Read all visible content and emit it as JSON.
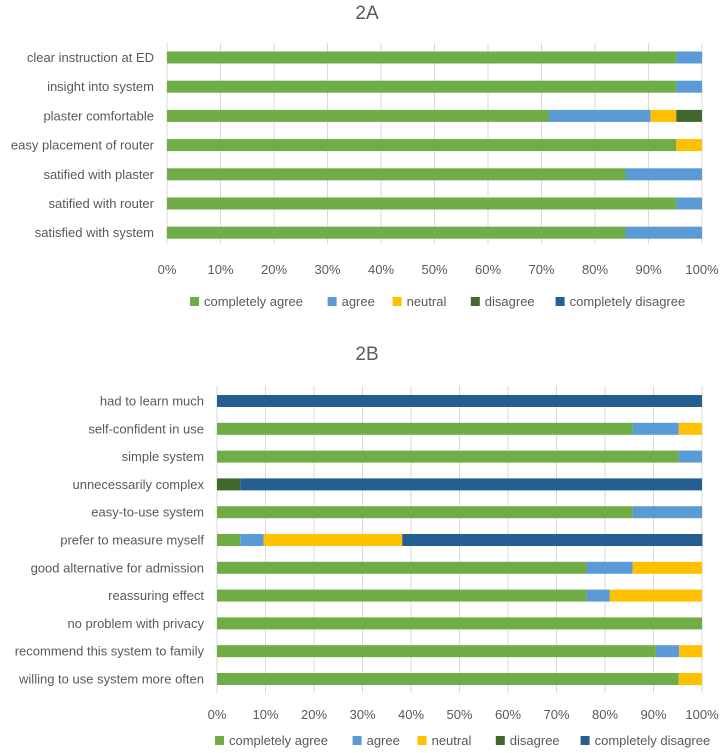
{
  "colors": {
    "completely_agree": "#70AD47",
    "agree": "#5B9BD5",
    "neutral": "#FFC000",
    "disagree": "#43682B",
    "completely_disagree": "#255E91",
    "gridline": "#D9D9D9",
    "text": "#595959"
  },
  "chart_data": [
    {
      "type": "bar",
      "orientation": "horizontal",
      "stacked": "percent",
      "title": "2A",
      "xlim": [
        0,
        100
      ],
      "xticks": [
        "0%",
        "10%",
        "20%",
        "30%",
        "40%",
        "50%",
        "60%",
        "70%",
        "80%",
        "90%",
        "100%"
      ],
      "categories": [
        "clear instruction at ED",
        "insight into system",
        "plaster comfortable",
        "easy placement of router",
        "satified with plaster",
        "satified with router",
        "satisfied with system"
      ],
      "series": [
        {
          "name": "completely agree",
          "values": [
            95.2,
            95.2,
            71.4,
            95.2,
            85.7,
            95.2,
            85.7
          ]
        },
        {
          "name": "agree",
          "values": [
            4.8,
            4.8,
            19.0,
            0,
            14.3,
            4.8,
            14.3
          ]
        },
        {
          "name": "neutral",
          "values": [
            0,
            0,
            4.8,
            4.8,
            0,
            0,
            0
          ]
        },
        {
          "name": "disagree",
          "values": [
            0,
            0,
            4.8,
            0,
            0,
            0,
            0
          ]
        },
        {
          "name": "completely disagree",
          "values": [
            0,
            0,
            0,
            0,
            0,
            0,
            0
          ]
        }
      ],
      "legend": "bottom"
    },
    {
      "type": "bar",
      "orientation": "horizontal",
      "stacked": "percent",
      "title": "2B",
      "xlim": [
        0,
        100
      ],
      "xticks": [
        "0%",
        "10%",
        "20%",
        "30%",
        "40%",
        "50%",
        "60%",
        "70%",
        "80%",
        "90%",
        "100%"
      ],
      "categories": [
        "had to learn much",
        "self-confident in use",
        "simple system",
        "unnecessarily complex",
        "easy-to-use system",
        "prefer to measure myself",
        "good alternative for admission",
        "reassuring effect",
        "no problem with privacy",
        "recommend this system to family",
        "willing to use system more often"
      ],
      "series": [
        {
          "name": "completely agree",
          "values": [
            0,
            85.7,
            95.2,
            0,
            85.7,
            4.8,
            76.2,
            76.2,
            100,
            90.5,
            95.2
          ]
        },
        {
          "name": "agree",
          "values": [
            0,
            9.5,
            4.8,
            0,
            14.3,
            4.8,
            9.5,
            4.8,
            0,
            4.8,
            0
          ]
        },
        {
          "name": "neutral",
          "values": [
            0,
            4.8,
            0,
            0,
            0,
            28.6,
            14.3,
            19.0,
            0,
            4.8,
            4.8
          ]
        },
        {
          "name": "disagree",
          "values": [
            0,
            0,
            0,
            4.8,
            0,
            0,
            0,
            0,
            0,
            0,
            0
          ]
        },
        {
          "name": "completely disagree",
          "values": [
            100,
            0,
            0,
            95.2,
            0,
            61.9,
            0,
            0,
            0,
            0,
            0
          ]
        }
      ],
      "legend": "bottom"
    }
  ]
}
